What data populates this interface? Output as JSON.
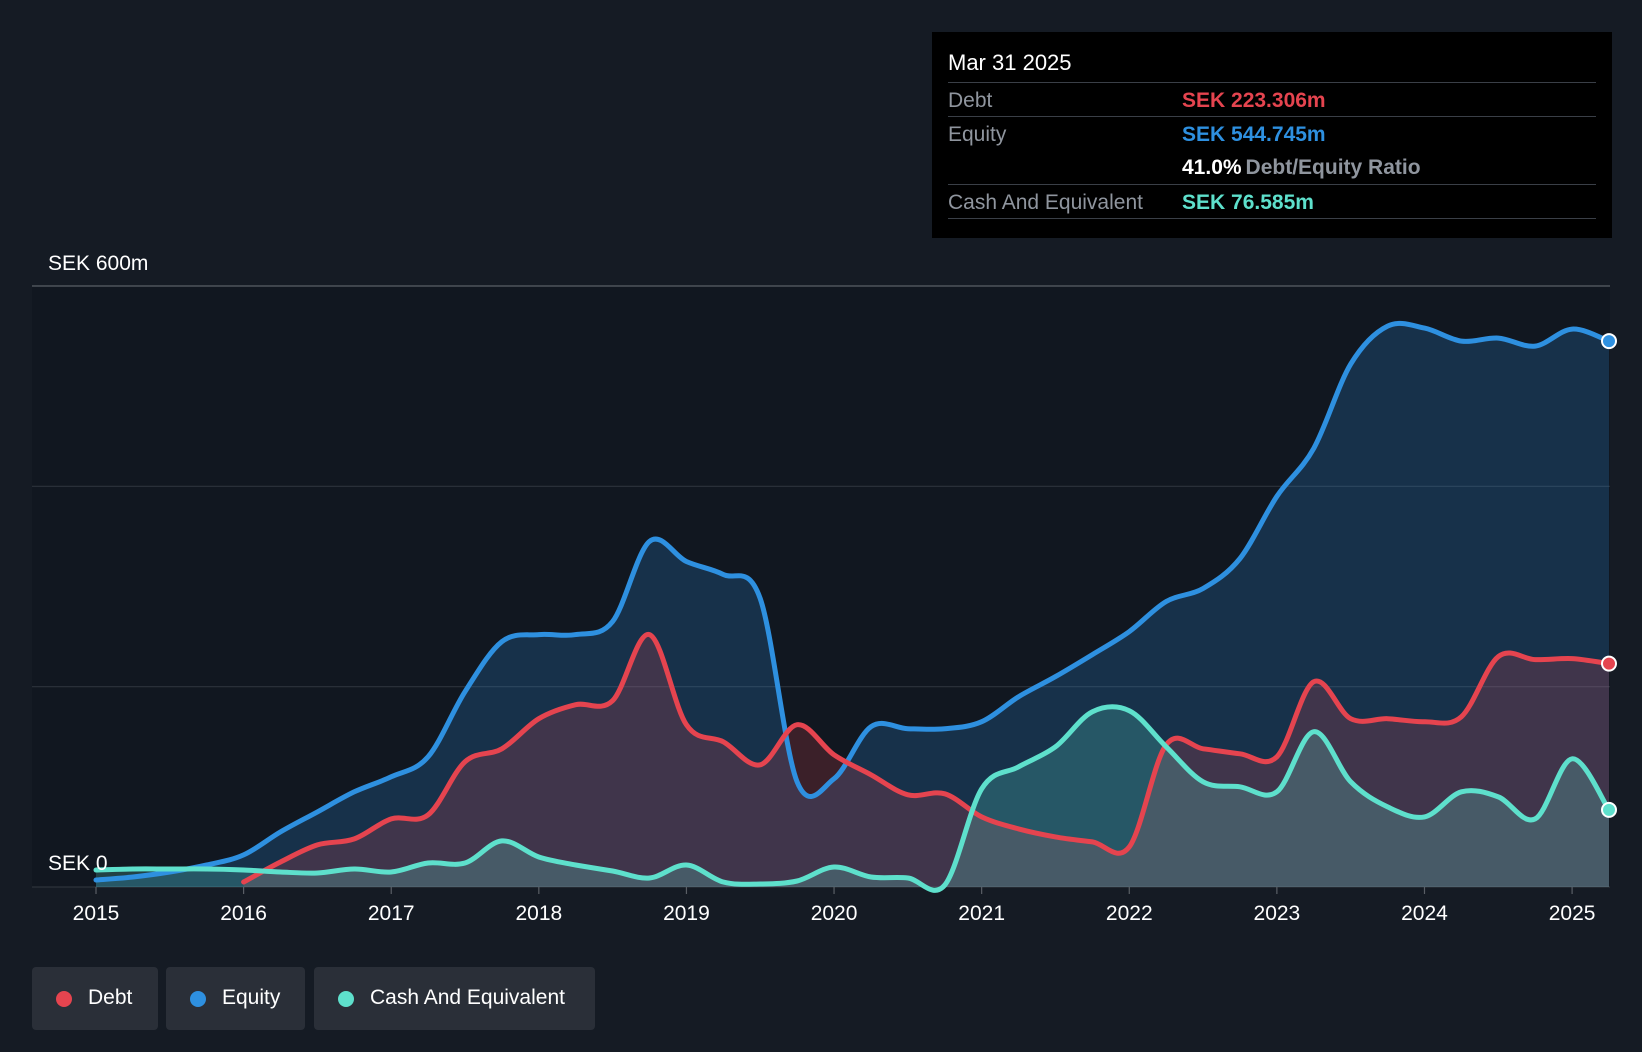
{
  "chart_data": {
    "type": "area",
    "title": "",
    "y_unit_label_top": "SEK 600m",
    "y_unit_label_bottom": "SEK 0",
    "ylim": [
      0,
      600
    ],
    "xlim": [
      2015.0,
      2025.25
    ],
    "x_ticks": [
      "2015",
      "2016",
      "2017",
      "2018",
      "2019",
      "2020",
      "2021",
      "2022",
      "2023",
      "2024",
      "2025"
    ],
    "x_tick_values": [
      2015,
      2016,
      2017,
      2018,
      2019,
      2020,
      2021,
      2022,
      2023,
      2024,
      2025
    ],
    "series": [
      {
        "name": "Equity",
        "color": "#2e90e0",
        "x": [
          2015.0,
          2015.25,
          2015.5,
          2015.75,
          2016.0,
          2016.25,
          2016.5,
          2016.75,
          2017.0,
          2017.25,
          2017.5,
          2017.75,
          2018.0,
          2018.25,
          2018.5,
          2018.75,
          2019.0,
          2019.25,
          2019.5,
          2019.75,
          2020.0,
          2020.25,
          2020.5,
          2020.75,
          2021.0,
          2021.25,
          2021.5,
          2021.75,
          2022.0,
          2022.25,
          2022.5,
          2022.75,
          2023.0,
          2023.25,
          2023.5,
          2023.75,
          2024.0,
          2024.25,
          2024.5,
          2024.75,
          2025.0,
          2025.25
        ],
        "values": [
          7,
          10,
          15,
          22,
          32,
          55,
          75,
          95,
          110,
          130,
          195,
          245,
          252,
          252,
          265,
          345,
          325,
          312,
          288,
          105,
          108,
          160,
          158,
          158,
          165,
          190,
          210,
          232,
          255,
          285,
          298,
          328,
          390,
          438,
          522,
          560,
          558,
          545,
          548,
          540,
          557,
          545
        ],
        "end_value_label": "SEK 544.745m"
      },
      {
        "name": "Debt",
        "color": "#e5444f",
        "x": [
          2016.0,
          2016.25,
          2016.5,
          2016.75,
          2017.0,
          2017.25,
          2017.5,
          2017.75,
          2018.0,
          2018.25,
          2018.5,
          2018.75,
          2019.0,
          2019.25,
          2019.5,
          2019.75,
          2020.0,
          2020.25,
          2020.5,
          2020.75,
          2021.0,
          2021.25,
          2021.5,
          2021.75,
          2022.0,
          2022.25,
          2022.5,
          2022.75,
          2023.0,
          2023.25,
          2023.5,
          2023.75,
          2024.0,
          2024.25,
          2024.5,
          2024.75,
          2025.0,
          2025.25
        ],
        "values": [
          5,
          25,
          42,
          48,
          68,
          72,
          125,
          138,
          168,
          182,
          186,
          252,
          162,
          145,
          122,
          162,
          132,
          112,
          92,
          93,
          70,
          58,
          50,
          45,
          40,
          142,
          138,
          133,
          130,
          205,
          168,
          168,
          165,
          170,
          230,
          227,
          228,
          223
        ],
        "end_value_label": "SEK 223.306m"
      },
      {
        "name": "Cash And Equivalent",
        "color": "#5ee0cc",
        "x": [
          2015.0,
          2015.25,
          2015.5,
          2015.75,
          2016.0,
          2016.25,
          2016.5,
          2016.75,
          2017.0,
          2017.25,
          2017.5,
          2017.75,
          2018.0,
          2018.25,
          2018.5,
          2018.75,
          2019.0,
          2019.25,
          2019.5,
          2019.75,
          2020.0,
          2020.25,
          2020.5,
          2020.75,
          2021.0,
          2021.25,
          2021.5,
          2021.75,
          2022.0,
          2022.25,
          2022.5,
          2022.75,
          2023.0,
          2023.25,
          2023.5,
          2023.75,
          2024.0,
          2024.25,
          2024.5,
          2024.75,
          2025.0,
          2025.25
        ],
        "values": [
          17,
          18,
          18,
          18,
          17,
          15,
          14,
          18,
          15,
          24,
          24,
          46,
          30,
          22,
          16,
          9,
          22,
          5,
          3,
          6,
          20,
          10,
          9,
          2,
          98,
          120,
          140,
          175,
          176,
          140,
          105,
          100,
          95,
          155,
          105,
          80,
          70,
          95,
          90,
          68,
          128,
          77
        ],
        "end_value_label": "SEK 76.585m"
      }
    ],
    "grid": true,
    "legend_position": "bottom-left"
  },
  "tooltip": {
    "date": "Mar 31 2025",
    "debt_label": "Debt",
    "debt_value": "SEK 223.306m",
    "equity_label": "Equity",
    "equity_value": "SEK 544.745m",
    "ratio_value": "41.0%",
    "ratio_label": "Debt/Equity Ratio",
    "cash_label": "Cash And Equivalent",
    "cash_value": "SEK 76.585m"
  },
  "legend": [
    {
      "label": "Debt",
      "color": "#e5444f"
    },
    {
      "label": "Equity",
      "color": "#2e90e0"
    },
    {
      "label": "Cash And Equivalent",
      "color": "#5ee0cc"
    }
  ]
}
